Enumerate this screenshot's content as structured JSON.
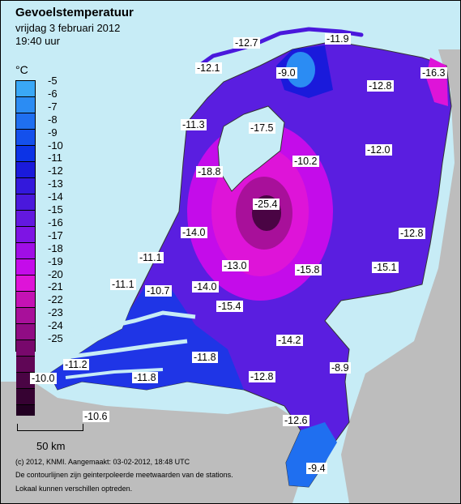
{
  "title": "Gevoelstemperatuur",
  "subtitle_date": "vrijdag 3 februari 2012",
  "subtitle_time": "19:40 uur",
  "legend": {
    "unit": "°C",
    "labels": [
      "-5",
      "-6",
      "-7",
      "-8",
      "-9",
      "-10",
      "-11",
      "-12",
      "-13",
      "-14",
      "-15",
      "-16",
      "-17",
      "-18",
      "-19",
      "-20",
      "-21",
      "-22",
      "-23",
      "-24",
      "-25"
    ],
    "colors": [
      "#3aa8f6",
      "#2b8cf3",
      "#1f6ff0",
      "#1450ec",
      "#0c33e6",
      "#1a1adb",
      "#3318dc",
      "#4a18dc",
      "#6318df",
      "#7e14e4",
      "#a00ee6",
      "#c40cea",
      "#de14d8",
      "#c412b4",
      "#a8109a",
      "#900c84",
      "#78086c",
      "#600656",
      "#4a0444",
      "#360232",
      "#220022"
    ]
  },
  "scale_bar": {
    "label": "50 km"
  },
  "credits": [
    "(c) 2012, KNMI. Aangemaakt: 03-02-2012, 18:48 UTC",
    "De contourlijnen zijn geinterpoleerde meetwaarden van de stations.",
    "Lokaal kunnen verschillen optreden."
  ],
  "station_values": [
    "-12.7",
    "-11.9",
    "-12.1",
    "-9.0",
    "-16.3",
    "-12.8",
    "-11.3",
    "-17.5",
    "-12.0",
    "-10.2",
    "-18.8",
    "-25.4",
    "-14.0",
    "-12.8",
    "-11.1",
    "-13.0",
    "-15.8",
    "-15.1",
    "-11.1",
    "-10.7",
    "-14.0",
    "-15.4",
    "-14.2",
    "-11.2",
    "-11.8",
    "-12.8",
    "-8.9",
    "-10.0",
    "-11.8",
    "-10.6",
    "-12.6",
    "-9.4"
  ],
  "colors": {
    "sea": "#c7ecf6",
    "land_outside": "#bdbdbd"
  }
}
